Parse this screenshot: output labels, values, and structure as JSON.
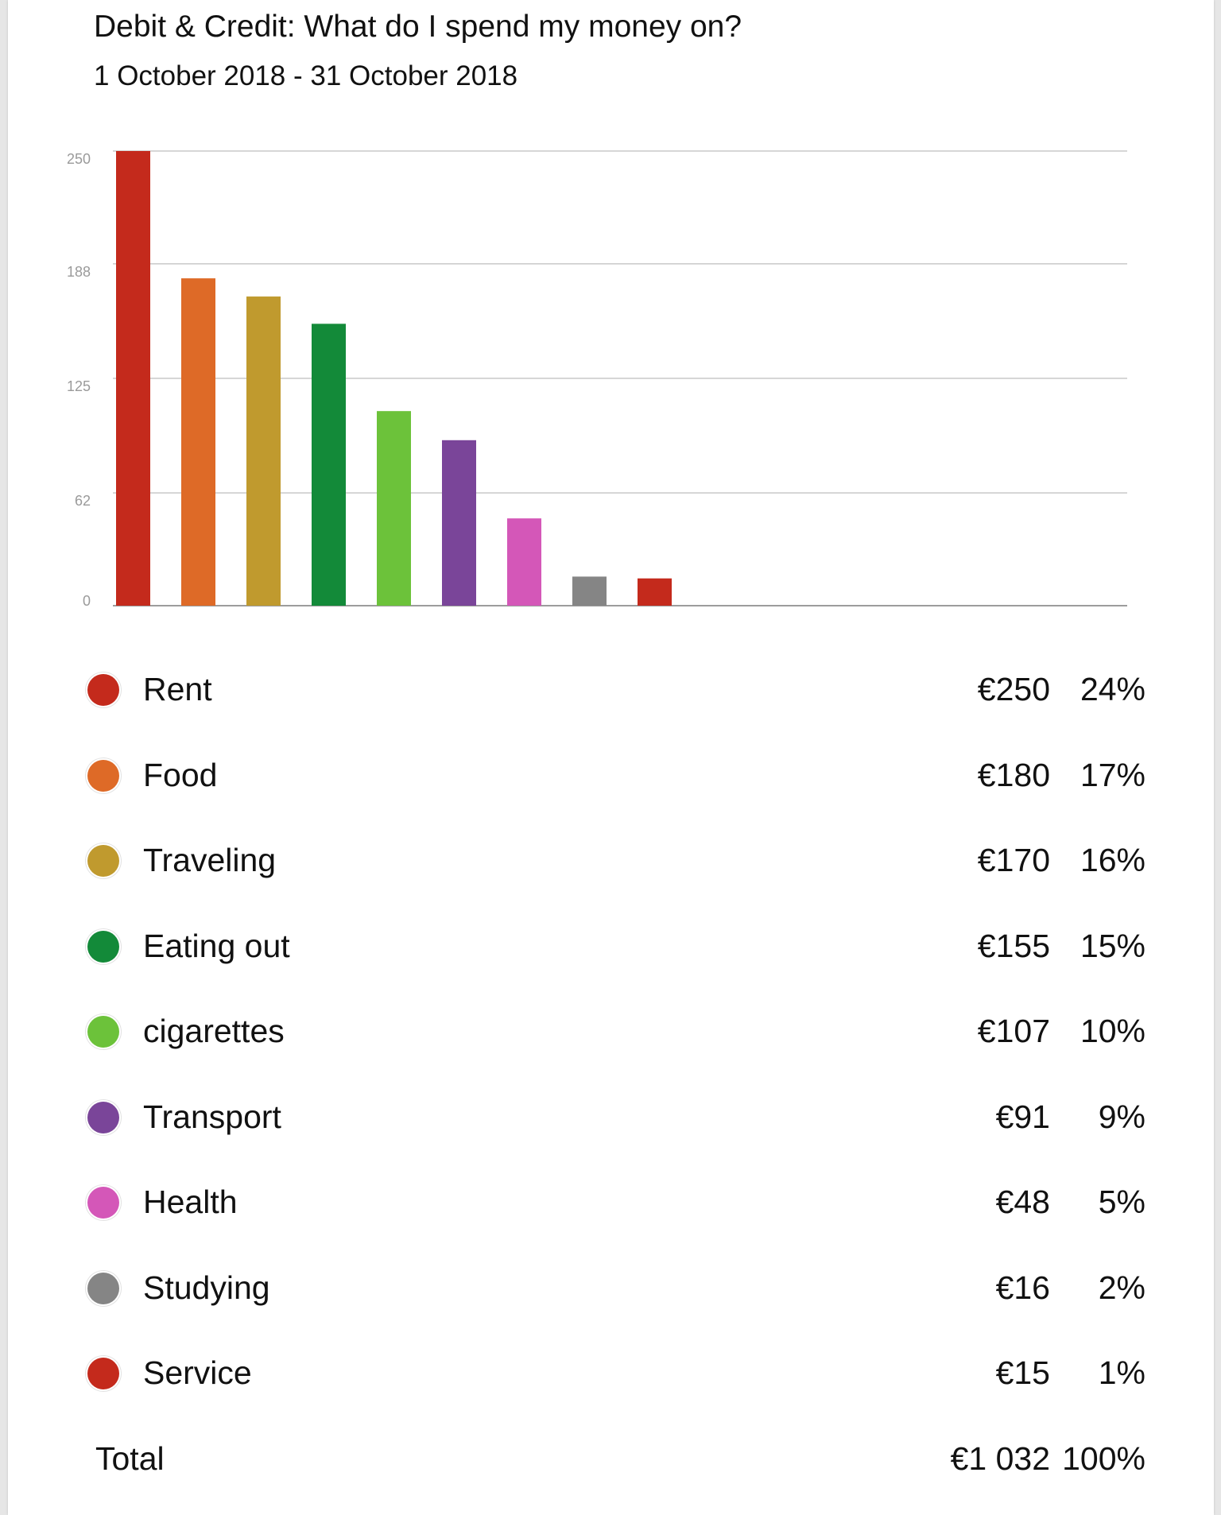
{
  "header": {
    "title": "Debit & Credit: What do I spend my money on?",
    "subtitle": "1 October 2018 - 31 October 2018"
  },
  "chart_data": {
    "type": "bar",
    "title": "Debit & Credit: What do I spend my money on?",
    "subtitle": "1 October 2018 - 31 October 2018",
    "categories": [
      "Rent",
      "Food",
      "Traveling",
      "Eating out",
      "cigarettes",
      "Transport",
      "Health",
      "Studying",
      "Service"
    ],
    "values": [
      250,
      180,
      170,
      155,
      107,
      91,
      48,
      16,
      15
    ],
    "colors": [
      "#c42a1c",
      "#de6a27",
      "#c09a2e",
      "#138a39",
      "#6cc23a",
      "#7a4599",
      "#d457b8",
      "#858585",
      "#c42a1c"
    ],
    "ylim": [
      0,
      250
    ],
    "yticks": [
      "0",
      "62",
      "125",
      "188",
      "250"
    ],
    "grid": true,
    "xlabel": "",
    "ylabel": ""
  },
  "legend": {
    "items": [
      {
        "label": "Rent",
        "amount": "€250",
        "percent": "24%",
        "color": "#c42a1c"
      },
      {
        "label": "Food",
        "amount": "€180",
        "percent": "17%",
        "color": "#de6a27"
      },
      {
        "label": "Traveling",
        "amount": "€170",
        "percent": "16%",
        "color": "#c09a2e"
      },
      {
        "label": "Eating out",
        "amount": "€155",
        "percent": "15%",
        "color": "#138a39"
      },
      {
        "label": "cigarettes",
        "amount": "€107",
        "percent": "10%",
        "color": "#6cc23a"
      },
      {
        "label": "Transport",
        "amount": "€91",
        "percent": "9%",
        "color": "#7a4599"
      },
      {
        "label": "Health",
        "amount": "€48",
        "percent": "5%",
        "color": "#d457b8"
      },
      {
        "label": "Studying",
        "amount": "€16",
        "percent": "2%",
        "color": "#858585"
      },
      {
        "label": "Service",
        "amount": "€15",
        "percent": "1%",
        "color": "#c42a1c"
      }
    ],
    "total": {
      "label": "Total",
      "amount": "€1 032",
      "percent": "100%"
    }
  }
}
